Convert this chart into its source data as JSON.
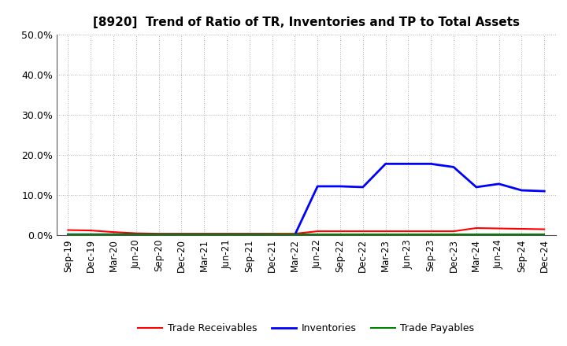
{
  "title": "[8920]  Trend of Ratio of TR, Inventories and TP to Total Assets",
  "x_labels": [
    "Sep-19",
    "Dec-19",
    "Mar-20",
    "Jun-20",
    "Sep-20",
    "Dec-20",
    "Mar-21",
    "Jun-21",
    "Sep-21",
    "Dec-21",
    "Mar-22",
    "Jun-22",
    "Sep-22",
    "Dec-22",
    "Mar-23",
    "Jun-23",
    "Sep-23",
    "Dec-23",
    "Mar-24",
    "Jun-24",
    "Sep-24",
    "Dec-24"
  ],
  "trade_receivables": [
    0.013,
    0.012,
    0.008,
    0.005,
    0.004,
    0.004,
    0.004,
    0.004,
    0.004,
    0.004,
    0.004,
    0.01,
    0.01,
    0.01,
    0.01,
    0.01,
    0.01,
    0.01,
    0.018,
    0.017,
    0.016,
    0.015
  ],
  "inventories": [
    0.002,
    0.002,
    0.002,
    0.002,
    0.002,
    0.002,
    0.002,
    0.002,
    0.002,
    0.002,
    0.001,
    0.122,
    0.122,
    0.12,
    0.178,
    0.178,
    0.178,
    0.17,
    0.12,
    0.128,
    0.112,
    0.11
  ],
  "trade_payables": [
    0.002,
    0.002,
    0.002,
    0.002,
    0.002,
    0.002,
    0.002,
    0.002,
    0.002,
    0.002,
    0.002,
    0.002,
    0.002,
    0.002,
    0.002,
    0.002,
    0.002,
    0.002,
    0.002,
    0.002,
    0.002,
    0.002
  ],
  "tr_color": "#ff0000",
  "inv_color": "#0000ff",
  "tp_color": "#008000",
  "ylim": [
    0.0,
    0.5
  ],
  "yticks": [
    0.0,
    0.1,
    0.2,
    0.3,
    0.4,
    0.5
  ],
  "background_color": "#ffffff",
  "grid_color": "#999999",
  "legend_labels": [
    "Trade Receivables",
    "Inventories",
    "Trade Payables"
  ],
  "title_fontsize": 11,
  "tick_fontsize": 8.5,
  "ytick_fontsize": 9
}
